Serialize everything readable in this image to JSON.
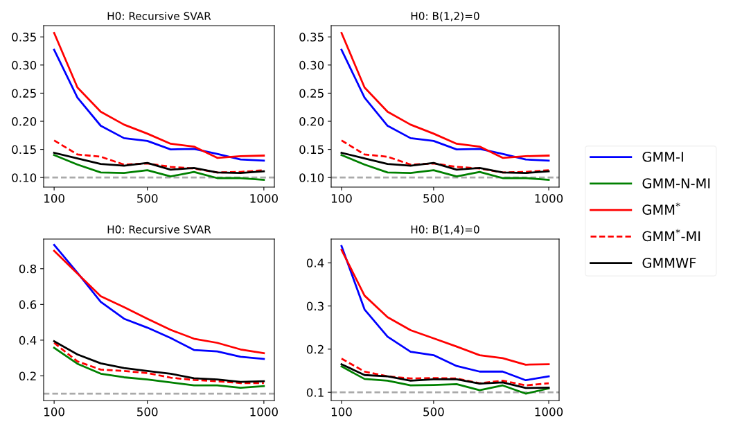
{
  "chart_data": [
    {
      "type": "line",
      "title": "H0: Recursive SVAR",
      "x": [
        100,
        200,
        300,
        400,
        500,
        600,
        700,
        800,
        900,
        1000
      ],
      "xlim": [
        55,
        1045
      ],
      "xticks": [
        100,
        500,
        1000
      ],
      "ylim": [
        0.083,
        0.37
      ],
      "yticks": [
        {
          "value": 0.1,
          "label": "0.10"
        },
        {
          "value": 0.15,
          "label": "0.15"
        },
        {
          "value": 0.2,
          "label": "0.20"
        },
        {
          "value": 0.25,
          "label": "0.25"
        },
        {
          "value": 0.3,
          "label": "0.30"
        },
        {
          "value": 0.35,
          "label": "0.35"
        }
      ],
      "grid": false,
      "legend": "right",
      "series": [
        {
          "name": "GMM-I",
          "color": "#0000ff",
          "values": [
            0.327,
            0.242,
            0.192,
            0.17,
            0.165,
            0.15,
            0.151,
            0.142,
            0.132,
            0.13
          ]
        },
        {
          "name": "GMM-N-MI",
          "color": "#008000",
          "values": [
            0.14,
            0.123,
            0.109,
            0.108,
            0.113,
            0.102,
            0.11,
            0.099,
            0.099,
            0.096
          ]
        },
        {
          "name": "GMM$^{*}$",
          "color": "#ff0000",
          "values": [
            0.357,
            0.26,
            0.217,
            0.194,
            0.178,
            0.16,
            0.155,
            0.135,
            0.138,
            0.139
          ]
        },
        {
          "name": "GMM$^{*}$-MI",
          "color": "#ff0000",
          "line_style": "dashed",
          "values": [
            0.166,
            0.141,
            0.137,
            0.123,
            0.125,
            0.119,
            0.116,
            0.109,
            0.11,
            0.113
          ]
        },
        {
          "name": "GMMWF",
          "color": "#000000",
          "values": [
            0.144,
            0.134,
            0.124,
            0.121,
            0.126,
            0.114,
            0.117,
            0.109,
            0.108,
            0.111
          ]
        }
      ],
      "ref_lines": [
        {
          "axis": "y",
          "value": 0.1,
          "color": "#aaaaaa",
          "line_style": "dashed"
        }
      ]
    },
    {
      "type": "line",
      "title": "H0: B(1,2)=0",
      "x": [
        100,
        200,
        300,
        400,
        500,
        600,
        700,
        800,
        900,
        1000
      ],
      "xlim": [
        55,
        1045
      ],
      "xticks": [
        100,
        500,
        1000
      ],
      "ylim": [
        0.083,
        0.37
      ],
      "yticks": [
        {
          "value": 0.1,
          "label": "0.10"
        },
        {
          "value": 0.15,
          "label": "0.15"
        },
        {
          "value": 0.2,
          "label": "0.20"
        },
        {
          "value": 0.25,
          "label": "0.25"
        },
        {
          "value": 0.3,
          "label": "0.30"
        },
        {
          "value": 0.35,
          "label": "0.35"
        }
      ],
      "grid": false,
      "series": [
        {
          "color": "#0000ff",
          "values": [
            0.327,
            0.242,
            0.192,
            0.17,
            0.165,
            0.15,
            0.151,
            0.142,
            0.132,
            0.13
          ]
        },
        {
          "color": "#008000",
          "values": [
            0.14,
            0.123,
            0.109,
            0.108,
            0.113,
            0.102,
            0.11,
            0.099,
            0.099,
            0.096
          ]
        },
        {
          "color": "#ff0000",
          "values": [
            0.357,
            0.26,
            0.217,
            0.194,
            0.178,
            0.16,
            0.155,
            0.135,
            0.138,
            0.139
          ]
        },
        {
          "color": "#ff0000",
          "line_style": "dashed",
          "values": [
            0.166,
            0.141,
            0.137,
            0.123,
            0.125,
            0.119,
            0.116,
            0.109,
            0.11,
            0.113
          ]
        },
        {
          "color": "#000000",
          "values": [
            0.144,
            0.134,
            0.124,
            0.121,
            0.126,
            0.114,
            0.117,
            0.109,
            0.108,
            0.111
          ]
        }
      ],
      "ref_lines": [
        {
          "axis": "y",
          "value": 0.1,
          "color": "#aaaaaa",
          "line_style": "dashed"
        }
      ]
    },
    {
      "type": "line",
      "title": "H0: Recursive SVAR",
      "x": [
        100,
        200,
        300,
        400,
        500,
        600,
        700,
        800,
        900,
        1000
      ],
      "xlim": [
        55,
        1045
      ],
      "xticks": [
        100,
        500,
        1000
      ],
      "ylim": [
        0.062,
        0.966
      ],
      "yticks": [
        0.2,
        0.4,
        0.6,
        0.8
      ],
      "grid": false,
      "series": [
        {
          "color": "#0000ff",
          "values": [
            0.933,
            0.777,
            0.614,
            0.52,
            0.47,
            0.412,
            0.345,
            0.337,
            0.307,
            0.295
          ]
        },
        {
          "color": "#008000",
          "values": [
            0.357,
            0.268,
            0.212,
            0.192,
            0.18,
            0.163,
            0.147,
            0.147,
            0.133,
            0.143
          ]
        },
        {
          "color": "#ff0000",
          "values": [
            0.9,
            0.773,
            0.646,
            0.585,
            0.52,
            0.458,
            0.408,
            0.385,
            0.348,
            0.327
          ]
        },
        {
          "color": "#ff0000",
          "line_style": "dashed",
          "values": [
            0.385,
            0.281,
            0.235,
            0.227,
            0.216,
            0.19,
            0.177,
            0.17,
            0.16,
            0.16
          ]
        },
        {
          "color": "#000000",
          "values": [
            0.394,
            0.32,
            0.27,
            0.244,
            0.227,
            0.212,
            0.187,
            0.18,
            0.166,
            0.17
          ]
        }
      ],
      "ref_lines": [
        {
          "axis": "y",
          "value": 0.1,
          "color": "#aaaaaa",
          "line_style": "dashed"
        }
      ]
    },
    {
      "type": "line",
      "title": "H0: B(1,4)=0",
      "x": [
        100,
        200,
        300,
        400,
        500,
        600,
        700,
        800,
        900,
        1000
      ],
      "xlim": [
        55,
        1045
      ],
      "xticks": [
        100,
        500,
        1000
      ],
      "ylim": [
        0.081,
        0.455
      ],
      "yticks": [
        0.1,
        0.2,
        0.3,
        0.4
      ],
      "grid": false,
      "series": [
        {
          "color": "#0000ff",
          "values": [
            0.439,
            0.292,
            0.229,
            0.194,
            0.186,
            0.161,
            0.148,
            0.148,
            0.128,
            0.137
          ]
        },
        {
          "color": "#008000",
          "values": [
            0.16,
            0.131,
            0.127,
            0.116,
            0.117,
            0.119,
            0.105,
            0.116,
            0.097,
            0.109
          ]
        },
        {
          "color": "#ff0000",
          "values": [
            0.43,
            0.324,
            0.274,
            0.244,
            0.225,
            0.206,
            0.186,
            0.179,
            0.164,
            0.165
          ]
        },
        {
          "color": "#ff0000",
          "line_style": "dashed",
          "values": [
            0.178,
            0.148,
            0.137,
            0.132,
            0.133,
            0.132,
            0.121,
            0.127,
            0.116,
            0.121
          ]
        },
        {
          "color": "#000000",
          "values": [
            0.165,
            0.14,
            0.137,
            0.127,
            0.13,
            0.13,
            0.12,
            0.123,
            0.11,
            0.111
          ]
        }
      ],
      "ref_lines": [
        {
          "axis": "y",
          "value": 0.1,
          "color": "#aaaaaa",
          "line_style": "dashed"
        }
      ]
    }
  ]
}
